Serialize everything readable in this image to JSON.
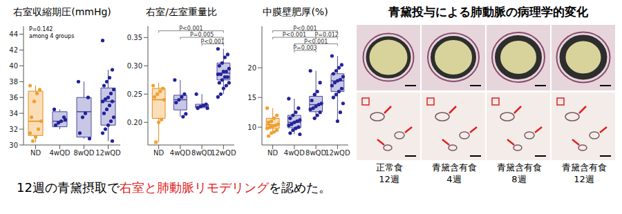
{
  "chart_data": [
    {
      "type": "box",
      "title": "右室収縮期圧(mmHg)",
      "categories": [
        "ND",
        "4wQD",
        "8wQD",
        "12wQD"
      ],
      "colors": [
        "#f0a030",
        "#23239a",
        "#23239a",
        "#23239a"
      ],
      "annotation": "P=0.142\namong 4 groups",
      "boxes": [
        {
          "min": 30.3,
          "q1": 31.2,
          "median": 33,
          "q3": 36.8,
          "max": 37.5
        },
        {
          "min": 32,
          "q1": 32.3,
          "median": 33,
          "q3": 34.2,
          "max": 34.5
        },
        {
          "min": 30.8,
          "q1": 31,
          "median": 34.2,
          "q3": 36,
          "max": 38
        },
        {
          "min": 30.5,
          "q1": 32.5,
          "median": 35.5,
          "q3": 37.2,
          "max": 39.5
        }
      ],
      "points": [
        [
          37.5,
          37,
          36.5,
          35.5,
          33.5,
          33,
          32,
          31,
          30.5,
          31.5
        ],
        [
          34.5,
          33.5,
          33,
          32.8,
          32.5,
          33.2
        ],
        [
          38,
          36,
          34,
          33.5,
          31.5,
          30.8
        ],
        [
          43.2,
          39.5,
          38.5,
          38,
          37.5,
          37,
          36.5,
          36,
          35.8,
          35.5,
          35.5,
          35,
          34.5,
          34,
          33.5,
          33,
          32.5,
          32,
          31.5,
          30.5
        ]
      ],
      "comparisons": [],
      "ylim": [
        30,
        45
      ],
      "yticks": [
        30,
        32,
        34,
        36,
        38,
        40,
        42,
        44
      ]
    },
    {
      "type": "box",
      "title": "右室/左室重量比",
      "categories": [
        "ND",
        "4wQD",
        "8wQD",
        "12wQD"
      ],
      "colors": [
        "#f0a030",
        "#23239a",
        "#23239a",
        "#23239a"
      ],
      "boxes": [
        {
          "min": 0.165,
          "q1": 0.207,
          "median": 0.24,
          "q3": 0.26,
          "max": 0.27
        },
        {
          "min": 0.21,
          "q1": 0.222,
          "median": 0.24,
          "q3": 0.248,
          "max": 0.275
        },
        {
          "min": 0.225,
          "q1": 0.226,
          "median": 0.228,
          "q3": 0.232,
          "max": 0.25
        },
        {
          "min": 0.25,
          "q1": 0.275,
          "median": 0.287,
          "q3": 0.305,
          "max": 0.33
        }
      ],
      "points": [
        [
          0.265,
          0.26,
          0.255,
          0.25,
          0.245,
          0.24,
          0.205,
          0.2,
          0.165
        ],
        [
          0.275,
          0.25,
          0.245,
          0.24,
          0.235,
          0.215,
          0.21
        ],
        [
          0.25,
          0.232,
          0.23,
          0.228,
          0.225,
          0.225
        ],
        [
          0.33,
          0.32,
          0.315,
          0.305,
          0.3,
          0.295,
          0.29,
          0.29,
          0.285,
          0.285,
          0.28,
          0.28,
          0.275,
          0.27,
          0.27,
          0.265,
          0.26,
          0.25,
          0.245
        ]
      ],
      "comparisons": [
        {
          "from": "ND",
          "to": "12wQD",
          "label": "P<0.001"
        },
        {
          "from": "4wQD",
          "to": "12wQD",
          "label": "P=0.005"
        },
        {
          "from": "8wQD",
          "to": "12wQD",
          "label": "P<0.001"
        }
      ],
      "ylim": [
        0.16,
        0.37
      ],
      "yticks": [
        {
          "value": 0.2,
          "label": "0.20"
        },
        0.25,
        {
          "value": 0.3,
          "label": "0.30"
        },
        0.35
      ]
    },
    {
      "type": "box",
      "title": "中膜壁肥厚(%)",
      "categories": [
        "ND",
        "4wQD",
        "8wQD",
        "12wQD"
      ],
      "colors": [
        "#f0a030",
        "#23239a",
        "#23239a",
        "#23239a"
      ],
      "boxes": [
        {
          "min": 9,
          "q1": 9.8,
          "median": 10.4,
          "q3": 11.5,
          "max": 13.2
        },
        {
          "min": 8.8,
          "q1": 9.9,
          "median": 10.8,
          "q3": 12,
          "max": 14.8
        },
        {
          "min": 11.5,
          "q1": 12.6,
          "median": 13.8,
          "q3": 15.2,
          "max": 19.5
        },
        {
          "min": 11,
          "q1": 16,
          "median": 17.8,
          "q3": 19,
          "max": 22
        }
      ],
      "points": [
        [
          13.2,
          12,
          11.5,
          11,
          10.8,
          10.5,
          10.3,
          10.2,
          10,
          9.8,
          9.5,
          9.2,
          9,
          8.5
        ],
        [
          14.8,
          13.2,
          12.5,
          12,
          11.5,
          11.2,
          11,
          10.8,
          10.5,
          10.3,
          10,
          9.8,
          9.5,
          9,
          8.8
        ],
        [
          19.5,
          17.5,
          16,
          15.5,
          14.5,
          14,
          13.8,
          13.5,
          13.2,
          13,
          12.5,
          12,
          11.5
        ],
        [
          22,
          20.5,
          20,
          19.5,
          19,
          18.5,
          18,
          17.8,
          17.5,
          17,
          16.5,
          16,
          15.5,
          15,
          14,
          12.5,
          11
        ]
      ],
      "comparisons": [
        {
          "from": "ND",
          "to": "12wQD",
          "label": "P<0.001"
        },
        {
          "from": "ND",
          "to": "8wQD",
          "label": "P<0.001"
        },
        {
          "from": "8wQD",
          "to": "12wQD",
          "label": "P=0.012"
        },
        {
          "from": "4wQD",
          "to": "12wQD",
          "label": "P<0.001"
        },
        {
          "from": "4wQD",
          "to": "8wQD",
          "label": "P=0.003"
        }
      ],
      "ylim": [
        7,
        27
      ],
      "yticks": [
        10,
        15,
        20
      ]
    }
  ],
  "caption": {
    "before": "12週の青黛摂取で",
    "highlight": "右室と肺動脈リモデリング",
    "after": "を認めた。"
  },
  "histology": {
    "title": "青黛投与による肺動脈の病理学的変化",
    "labels": [
      "正常食\n12週",
      "青黛含有食\n4週",
      "青黛含有食\n8週",
      "青黛含有食\n12週"
    ]
  }
}
